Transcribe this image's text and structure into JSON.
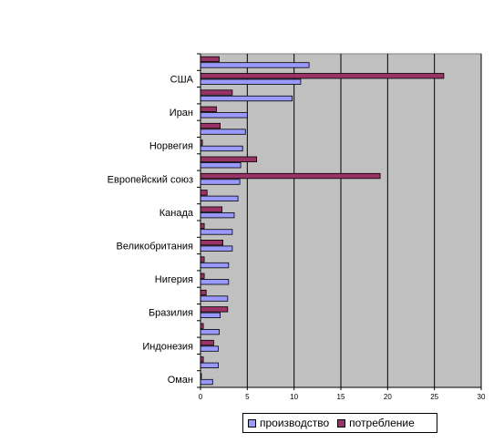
{
  "chart_data": {
    "type": "bar",
    "orientation": "horizontal",
    "category_labels": [
      "США",
      "Иран",
      "Норвегия",
      "Европейский союз",
      "Канада",
      "Великобритания",
      "Нигерия",
      "Бразилия",
      "Индонезия",
      "Оман"
    ],
    "categories_top_to_bottom": [
      "",
      "США",
      "",
      "Иран",
      "",
      "Норвегия",
      "",
      "Европейский союз",
      "",
      "Канада",
      "",
      "Великобритания",
      "",
      "Нигерия",
      "",
      "Бразилия",
      "",
      "Индонезия",
      "",
      "Оман"
    ],
    "series": [
      {
        "name": "потребление",
        "color": "#993366",
        "values": [
          2.0,
          26.0,
          3.4,
          1.7,
          2.1,
          0.2,
          6.0,
          19.2,
          0.7,
          2.3,
          0.4,
          2.4,
          0.4,
          0.4,
          0.6,
          2.9,
          0.3,
          1.4,
          0.3,
          0.1
        ]
      },
      {
        "name": "производство",
        "color": "#9999ff",
        "values": [
          11.6,
          10.7,
          9.8,
          5.0,
          4.8,
          4.5,
          4.3,
          4.2,
          4.0,
          3.6,
          3.4,
          3.4,
          3.0,
          3.0,
          2.9,
          2.1,
          2.0,
          1.9,
          1.9,
          1.3
        ]
      }
    ],
    "x_ticks": [
      "0",
      "5",
      "10",
      "15",
      "20",
      "25",
      "30"
    ],
    "xlim": [
      0,
      30
    ],
    "grid": true,
    "plot_background": "#c0c0c0",
    "legend_position": "bottom"
  },
  "legend": {
    "items": [
      {
        "label": "производство",
        "color": "#9999ff"
      },
      {
        "label": "потребление",
        "color": "#993366"
      }
    ]
  }
}
